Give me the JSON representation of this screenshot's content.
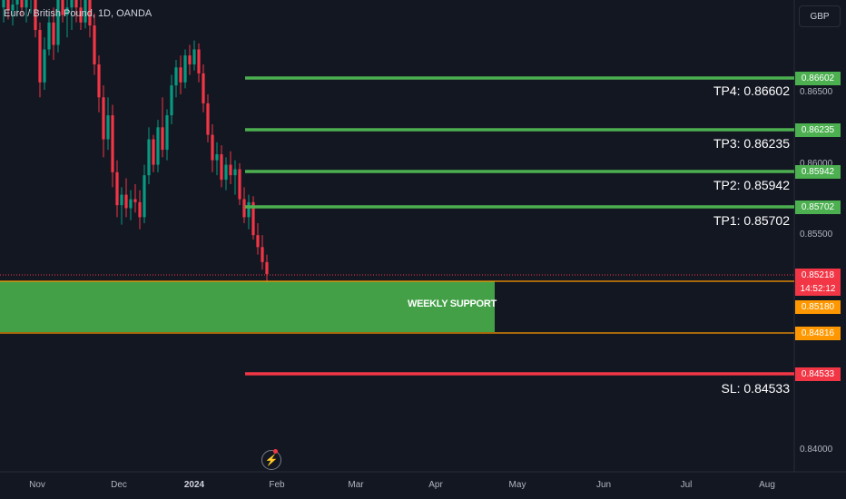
{
  "header": {
    "title": "Euro / British Pound, 1D, OANDA",
    "currency_button": "GBP"
  },
  "colors": {
    "background": "#131722",
    "up_candle": "#089981",
    "down_candle": "#f23645",
    "tp_line": "#4caf50",
    "sl_line": "#f23645",
    "support_zone": "#43a047",
    "support_border": "#ff9800",
    "price_tag": "#f23645"
  },
  "levels": {
    "tp4": {
      "label": "TP4: 0.86602",
      "tag": "0.86602",
      "price": 0.86602
    },
    "tp3": {
      "label": "TP3: 0.86235",
      "tag": "0.86235",
      "price": 0.86235
    },
    "tp2": {
      "label": "TP2: 0.85942",
      "tag": "0.85942",
      "price": 0.85942
    },
    "tp1": {
      "label": "TP1: 0.85702",
      "tag": "0.85702",
      "price": 0.85702
    },
    "sl": {
      "label": "SL: 0.84533",
      "tag": "0.84533",
      "price": 0.84533
    }
  },
  "support_zone": {
    "label": "WEEKLY SUPPORT",
    "top": 0.8518,
    "bottom": 0.84816,
    "top_tag": "0.85180",
    "bottom_tag": "0.84816"
  },
  "current_price": {
    "value": "0.85218",
    "countdown": "14:52:12"
  },
  "price_axis": {
    "ticks": [
      "0.86500",
      "0.86000",
      "0.85500",
      "0.84000"
    ]
  },
  "time_axis": {
    "labels": [
      "Nov",
      "Dec",
      "2024",
      "Feb",
      "Mar",
      "Apr",
      "May",
      "Jun",
      "Jul",
      "Aug"
    ]
  },
  "chart_data": {
    "type": "candlestick",
    "price_range": [
      0.839,
      0.8705
    ],
    "candles": [
      [
        0.87,
        0.8712,
        0.869,
        0.8705
      ],
      [
        0.8705,
        0.8714,
        0.8692,
        0.8698
      ],
      [
        0.8698,
        0.8708,
        0.8688,
        0.8702
      ],
      [
        0.8702,
        0.8715,
        0.8694,
        0.871
      ],
      [
        0.871,
        0.8716,
        0.8695,
        0.87
      ],
      [
        0.87,
        0.871,
        0.869,
        0.8705
      ],
      [
        0.8705,
        0.8714,
        0.8696,
        0.8708
      ],
      [
        0.8708,
        0.8712,
        0.868,
        0.8685
      ],
      [
        0.8685,
        0.869,
        0.864,
        0.865
      ],
      [
        0.865,
        0.868,
        0.8645,
        0.8672
      ],
      [
        0.8672,
        0.8695,
        0.8668,
        0.869
      ],
      [
        0.869,
        0.87,
        0.8665,
        0.8675
      ],
      [
        0.8675,
        0.871,
        0.867,
        0.8705
      ],
      [
        0.8705,
        0.8712,
        0.869,
        0.8695
      ],
      [
        0.8695,
        0.8705,
        0.868,
        0.87
      ],
      [
        0.87,
        0.8712,
        0.8685,
        0.8708
      ],
      [
        0.8708,
        0.8714,
        0.869,
        0.87
      ],
      [
        0.87,
        0.8708,
        0.8685,
        0.869
      ],
      [
        0.869,
        0.8712,
        0.8686,
        0.8708
      ],
      [
        0.8708,
        0.8714,
        0.868,
        0.8688
      ],
      [
        0.8688,
        0.8696,
        0.8655,
        0.8662
      ],
      [
        0.8662,
        0.8668,
        0.863,
        0.864
      ],
      [
        0.864,
        0.8648,
        0.86,
        0.8612
      ],
      [
        0.8612,
        0.864,
        0.8605,
        0.8628
      ],
      [
        0.8628,
        0.8635,
        0.858,
        0.859
      ],
      [
        0.859,
        0.8598,
        0.856,
        0.8568
      ],
      [
        0.8568,
        0.858,
        0.8555,
        0.8575
      ],
      [
        0.8575,
        0.8586,
        0.856,
        0.8566
      ],
      [
        0.8566,
        0.8578,
        0.8558,
        0.8572
      ],
      [
        0.8572,
        0.8582,
        0.8563,
        0.857
      ],
      [
        0.857,
        0.8578,
        0.8552,
        0.856
      ],
      [
        0.856,
        0.8595,
        0.8556,
        0.8588
      ],
      [
        0.8588,
        0.862,
        0.8582,
        0.8612
      ],
      [
        0.8612,
        0.8615,
        0.859,
        0.8595
      ],
      [
        0.8595,
        0.8625,
        0.859,
        0.862
      ],
      [
        0.862,
        0.864,
        0.86,
        0.8605
      ],
      [
        0.8605,
        0.8632,
        0.8598,
        0.8628
      ],
      [
        0.8628,
        0.8655,
        0.8622,
        0.8648
      ],
      [
        0.8648,
        0.8665,
        0.864,
        0.866
      ],
      [
        0.866,
        0.8668,
        0.8642,
        0.865
      ],
      [
        0.865,
        0.8672,
        0.8646,
        0.8668
      ],
      [
        0.8668,
        0.8675,
        0.8655,
        0.8662
      ],
      [
        0.8662,
        0.8678,
        0.8658,
        0.8672
      ],
      [
        0.8672,
        0.8676,
        0.865,
        0.8656
      ],
      [
        0.8656,
        0.8662,
        0.863,
        0.8636
      ],
      [
        0.8636,
        0.8642,
        0.861,
        0.8615
      ],
      [
        0.8615,
        0.8622,
        0.859,
        0.8598
      ],
      [
        0.8598,
        0.861,
        0.8588,
        0.8602
      ],
      [
        0.8602,
        0.8608,
        0.858,
        0.8585
      ],
      [
        0.8585,
        0.86,
        0.8578,
        0.8595
      ],
      [
        0.8595,
        0.8604,
        0.8582,
        0.8588
      ],
      [
        0.8588,
        0.8598,
        0.8575,
        0.8592
      ],
      [
        0.8592,
        0.8596,
        0.8568,
        0.8572
      ],
      [
        0.8572,
        0.858,
        0.8556,
        0.856
      ],
      [
        0.856,
        0.8575,
        0.8552,
        0.857
      ],
      [
        0.857,
        0.8574,
        0.8545,
        0.8548
      ],
      [
        0.8548,
        0.8556,
        0.8535,
        0.854
      ],
      [
        0.854,
        0.8548,
        0.8525,
        0.853
      ],
      [
        0.853,
        0.8535,
        0.8515,
        0.8522
      ]
    ]
  }
}
